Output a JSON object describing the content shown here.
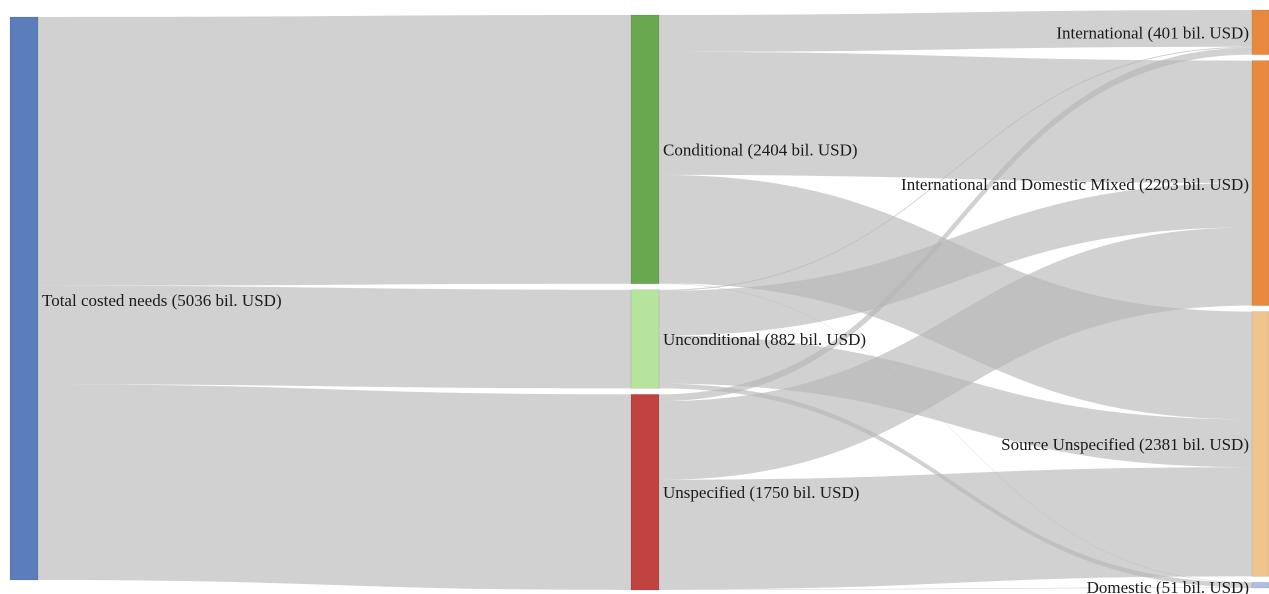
{
  "chart_data": {
    "type": "sankey",
    "title": "",
    "units": "bil. USD",
    "colors": {
      "total": "#5b7dbb",
      "Conditional": "#6aa84f",
      "Unconditional": "#b6e49c",
      "Unspecified": "#c0433f",
      "International": "#e8893e",
      "International and Domestic Mixed": "#e8893e",
      "Source Unspecified": "#f0c48e",
      "Domestic": "#aebfe0",
      "link": "#b4b4b4"
    },
    "nodes": [
      {
        "id": "total",
        "label": "Total costed needs (5036 bil. USD)",
        "value": 5036,
        "column": 0
      },
      {
        "id": "conditional",
        "label": "Conditional (2404 bil. USD)",
        "value": 2404,
        "column": 1
      },
      {
        "id": "unconditional",
        "label": "Unconditional (882 bil. USD)",
        "value": 882,
        "column": 1
      },
      {
        "id": "unspecified",
        "label": "Unspecified (1750 bil. USD)",
        "value": 1750,
        "column": 1
      },
      {
        "id": "international",
        "label": "International (401 bil. USD)",
        "value": 401,
        "column": 2
      },
      {
        "id": "mixed",
        "label": "International and Domestic Mixed (2203 bil. USD)",
        "value": 2203,
        "column": 2
      },
      {
        "id": "source_unspecified",
        "label": "Source Unspecified (2381 bil. USD)",
        "value": 2381,
        "column": 2
      },
      {
        "id": "domestic",
        "label": "Domestic (51 bil. USD)",
        "value": 51,
        "column": 2
      }
    ],
    "links": [
      {
        "source": "total",
        "target": "conditional",
        "value": 2404
      },
      {
        "source": "total",
        "target": "unconditional",
        "value": 882
      },
      {
        "source": "total",
        "target": "unspecified",
        "value": 1750
      },
      {
        "source": "conditional",
        "target": "international",
        "value": 330
      },
      {
        "source": "conditional",
        "target": "mixed",
        "value": 1100
      },
      {
        "source": "conditional",
        "target": "source_unspecified",
        "value": 970
      },
      {
        "source": "conditional",
        "target": "domestic",
        "value": 4
      },
      {
        "source": "unconditional",
        "target": "international",
        "value": 10
      },
      {
        "source": "unconditional",
        "target": "mixed",
        "value": 400
      },
      {
        "source": "unconditional",
        "target": "source_unspecified",
        "value": 430
      },
      {
        "source": "unconditional",
        "target": "domestic",
        "value": 42
      },
      {
        "source": "unspecified",
        "target": "international",
        "value": 61
      },
      {
        "source": "unspecified",
        "target": "mixed",
        "value": 703
      },
      {
        "source": "unspecified",
        "target": "source_unspecified",
        "value": 981
      },
      {
        "source": "unspecified",
        "target": "domestic",
        "value": 5
      }
    ]
  }
}
